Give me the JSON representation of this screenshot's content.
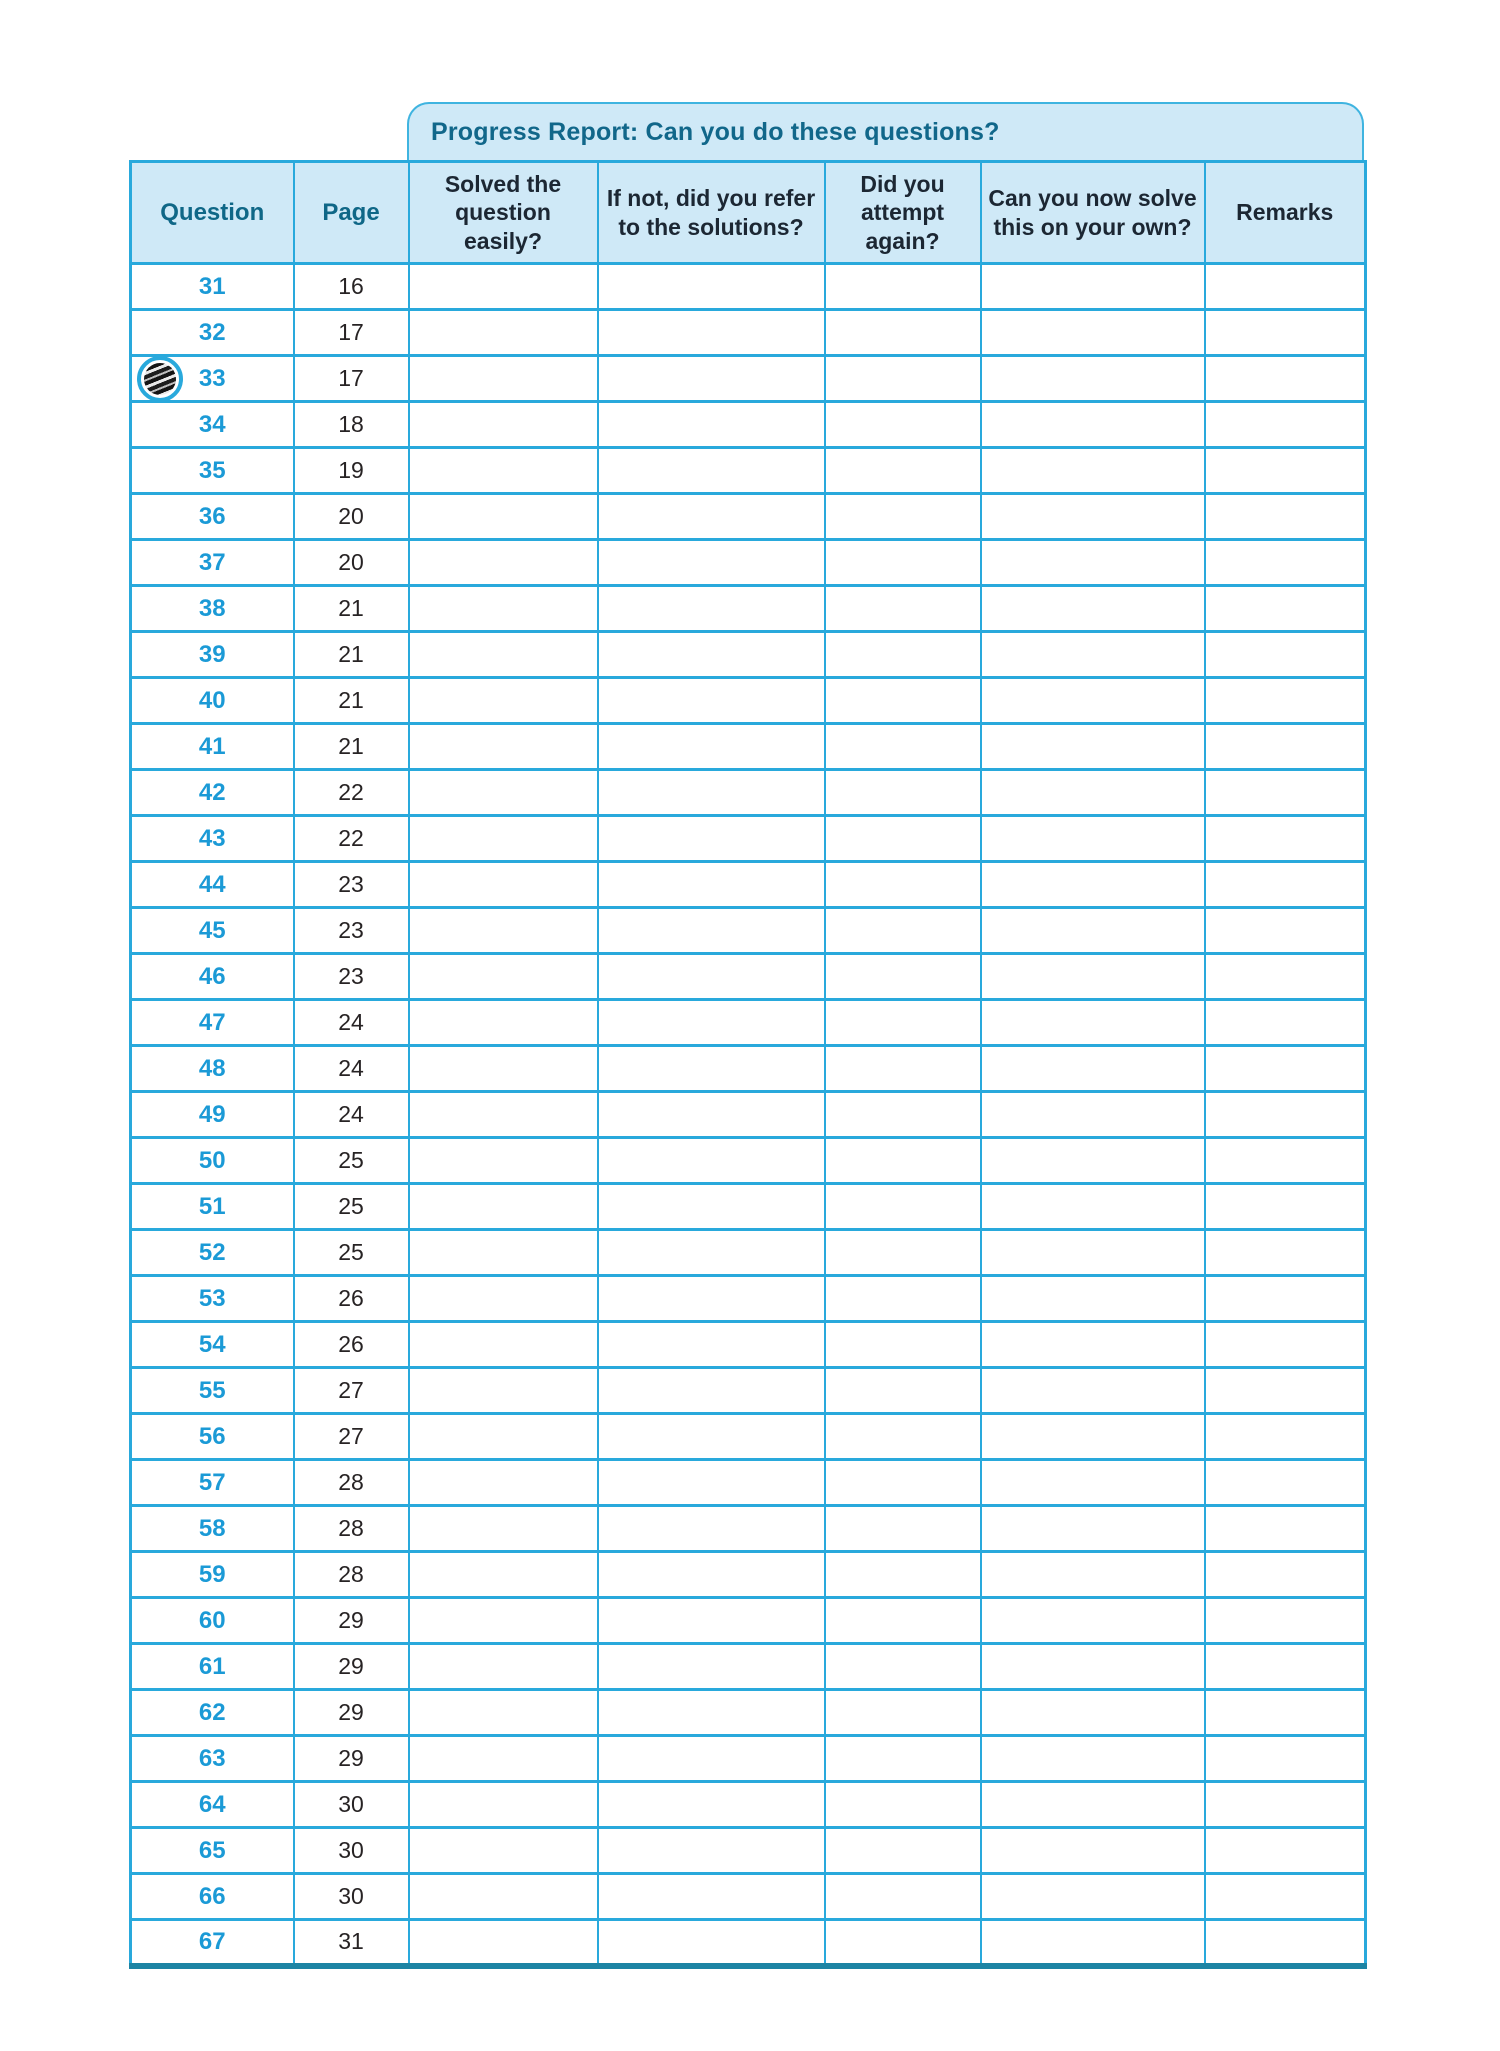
{
  "title_bar": {
    "text": "Progress Report: Can you do these questions?",
    "text_color": "#11678a",
    "background": "#cfe9f7"
  },
  "table": {
    "columns": [
      {
        "key": "question",
        "label": "Question"
      },
      {
        "key": "page",
        "label": "Page"
      },
      {
        "key": "solved",
        "label": "Solved the question easily?"
      },
      {
        "key": "referred",
        "label": "If not, did you refer to the solutions?"
      },
      {
        "key": "attempted",
        "label": "Did you attempt again?"
      },
      {
        "key": "own",
        "label": "Can you now solve this on your own?"
      },
      {
        "key": "remarks",
        "label": "Remarks"
      }
    ],
    "rows": [
      {
        "question": "31",
        "page": "16",
        "solved": "",
        "referred": "",
        "attempted": "",
        "own": "",
        "remarks": "",
        "badge": false
      },
      {
        "question": "32",
        "page": "17",
        "solved": "",
        "referred": "",
        "attempted": "",
        "own": "",
        "remarks": "",
        "badge": false
      },
      {
        "question": "33",
        "page": "17",
        "solved": "",
        "referred": "",
        "attempted": "",
        "own": "",
        "remarks": "",
        "badge": true
      },
      {
        "question": "34",
        "page": "18",
        "solved": "",
        "referred": "",
        "attempted": "",
        "own": "",
        "remarks": "",
        "badge": false
      },
      {
        "question": "35",
        "page": "19",
        "solved": "",
        "referred": "",
        "attempted": "",
        "own": "",
        "remarks": "",
        "badge": false
      },
      {
        "question": "36",
        "page": "20",
        "solved": "",
        "referred": "",
        "attempted": "",
        "own": "",
        "remarks": "",
        "badge": false
      },
      {
        "question": "37",
        "page": "20",
        "solved": "",
        "referred": "",
        "attempted": "",
        "own": "",
        "remarks": "",
        "badge": false
      },
      {
        "question": "38",
        "page": "21",
        "solved": "",
        "referred": "",
        "attempted": "",
        "own": "",
        "remarks": "",
        "badge": false
      },
      {
        "question": "39",
        "page": "21",
        "solved": "",
        "referred": "",
        "attempted": "",
        "own": "",
        "remarks": "",
        "badge": false
      },
      {
        "question": "40",
        "page": "21",
        "solved": "",
        "referred": "",
        "attempted": "",
        "own": "",
        "remarks": "",
        "badge": false
      },
      {
        "question": "41",
        "page": "21",
        "solved": "",
        "referred": "",
        "attempted": "",
        "own": "",
        "remarks": "",
        "badge": false
      },
      {
        "question": "42",
        "page": "22",
        "solved": "",
        "referred": "",
        "attempted": "",
        "own": "",
        "remarks": "",
        "badge": false
      },
      {
        "question": "43",
        "page": "22",
        "solved": "",
        "referred": "",
        "attempted": "",
        "own": "",
        "remarks": "",
        "badge": false
      },
      {
        "question": "44",
        "page": "23",
        "solved": "",
        "referred": "",
        "attempted": "",
        "own": "",
        "remarks": "",
        "badge": false
      },
      {
        "question": "45",
        "page": "23",
        "solved": "",
        "referred": "",
        "attempted": "",
        "own": "",
        "remarks": "",
        "badge": false
      },
      {
        "question": "46",
        "page": "23",
        "solved": "",
        "referred": "",
        "attempted": "",
        "own": "",
        "remarks": "",
        "badge": false
      },
      {
        "question": "47",
        "page": "24",
        "solved": "",
        "referred": "",
        "attempted": "",
        "own": "",
        "remarks": "",
        "badge": false
      },
      {
        "question": "48",
        "page": "24",
        "solved": "",
        "referred": "",
        "attempted": "",
        "own": "",
        "remarks": "",
        "badge": false
      },
      {
        "question": "49",
        "page": "24",
        "solved": "",
        "referred": "",
        "attempted": "",
        "own": "",
        "remarks": "",
        "badge": false
      },
      {
        "question": "50",
        "page": "25",
        "solved": "",
        "referred": "",
        "attempted": "",
        "own": "",
        "remarks": "",
        "badge": false
      },
      {
        "question": "51",
        "page": "25",
        "solved": "",
        "referred": "",
        "attempted": "",
        "own": "",
        "remarks": "",
        "badge": false
      },
      {
        "question": "52",
        "page": "25",
        "solved": "",
        "referred": "",
        "attempted": "",
        "own": "",
        "remarks": "",
        "badge": false
      },
      {
        "question": "53",
        "page": "26",
        "solved": "",
        "referred": "",
        "attempted": "",
        "own": "",
        "remarks": "",
        "badge": false
      },
      {
        "question": "54",
        "page": "26",
        "solved": "",
        "referred": "",
        "attempted": "",
        "own": "",
        "remarks": "",
        "badge": false
      },
      {
        "question": "55",
        "page": "27",
        "solved": "",
        "referred": "",
        "attempted": "",
        "own": "",
        "remarks": "",
        "badge": false
      },
      {
        "question": "56",
        "page": "27",
        "solved": "",
        "referred": "",
        "attempted": "",
        "own": "",
        "remarks": "",
        "badge": false
      },
      {
        "question": "57",
        "page": "28",
        "solved": "",
        "referred": "",
        "attempted": "",
        "own": "",
        "remarks": "",
        "badge": false
      },
      {
        "question": "58",
        "page": "28",
        "solved": "",
        "referred": "",
        "attempted": "",
        "own": "",
        "remarks": "",
        "badge": false
      },
      {
        "question": "59",
        "page": "28",
        "solved": "",
        "referred": "",
        "attempted": "",
        "own": "",
        "remarks": "",
        "badge": false
      },
      {
        "question": "60",
        "page": "29",
        "solved": "",
        "referred": "",
        "attempted": "",
        "own": "",
        "remarks": "",
        "badge": false
      },
      {
        "question": "61",
        "page": "29",
        "solved": "",
        "referred": "",
        "attempted": "",
        "own": "",
        "remarks": "",
        "badge": false
      },
      {
        "question": "62",
        "page": "29",
        "solved": "",
        "referred": "",
        "attempted": "",
        "own": "",
        "remarks": "",
        "badge": false
      },
      {
        "question": "63",
        "page": "29",
        "solved": "",
        "referred": "",
        "attempted": "",
        "own": "",
        "remarks": "",
        "badge": false
      },
      {
        "question": "64",
        "page": "30",
        "solved": "",
        "referred": "",
        "attempted": "",
        "own": "",
        "remarks": "",
        "badge": false
      },
      {
        "question": "65",
        "page": "30",
        "solved": "",
        "referred": "",
        "attempted": "",
        "own": "",
        "remarks": "",
        "badge": false
      },
      {
        "question": "66",
        "page": "30",
        "solved": "",
        "referred": "",
        "attempted": "",
        "own": "",
        "remarks": "",
        "badge": false
      },
      {
        "question": "67",
        "page": "31",
        "solved": "",
        "referred": "",
        "attempted": "",
        "own": "",
        "remarks": "",
        "badge": false
      }
    ]
  },
  "icons": {
    "row_badge": "striped-circle-badge-icon"
  },
  "colors": {
    "grid_line": "#29a9dc",
    "outer_bottom_border": "#1d84a4",
    "header_background": "#cfe9f7",
    "header_text_dark": "#1c2733",
    "header_text_teal": "#0f6787",
    "question_number": "#1b9ad6",
    "page_number": "#272324"
  }
}
